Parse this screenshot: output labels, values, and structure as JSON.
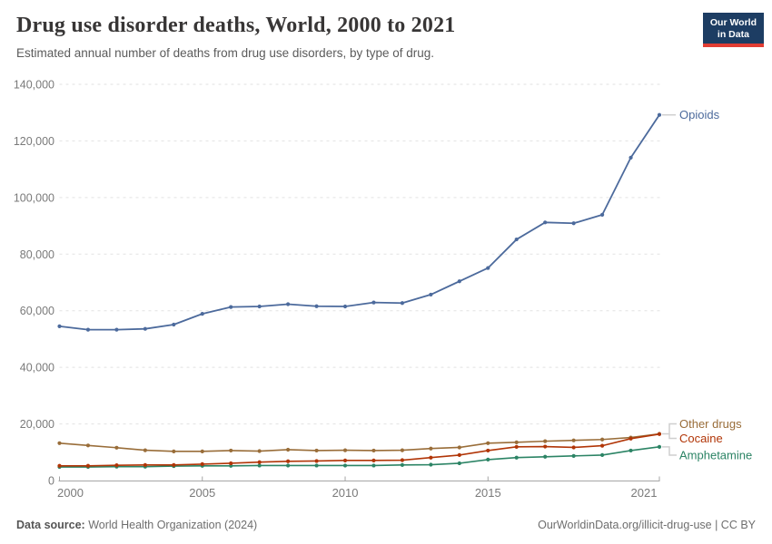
{
  "header": {
    "title": "Drug use disorder deaths, World, 2000 to 2021",
    "subtitle": "Estimated annual number of deaths from drug use disorders, by type of drug."
  },
  "logo": {
    "line1": "Our World",
    "line2": "in Data"
  },
  "footer": {
    "source_label": "Data source:",
    "source_text": "World Health Organization (2024)",
    "credit": "OurWorldinData.org/illicit-drug-use | CC BY"
  },
  "colors": {
    "opioids": "#4C6A9C",
    "other_drugs": "#996D39",
    "cocaine": "#B13507",
    "amphetamine": "#2C8465",
    "logo_bg": "#1d3d63",
    "logo_accent": "#e23d33",
    "grid": "#e2e2e2",
    "axis": "#a5a5a5",
    "tick_text": "#7a7a7a",
    "connector": "#cfcfcf"
  },
  "chart_data": {
    "type": "line",
    "title": "Drug use disorder deaths, World, 2000 to 2021",
    "xlabel": "",
    "ylabel": "",
    "grid": "dashed-horizontal",
    "legend_position": "right-end-labels",
    "ylim": [
      0,
      140000
    ],
    "yticks": [
      0,
      20000,
      40000,
      60000,
      80000,
      100000,
      120000,
      140000
    ],
    "xticks": [
      2000,
      2005,
      2010,
      2015,
      2021
    ],
    "x": [
      2000,
      2001,
      2002,
      2003,
      2004,
      2005,
      2006,
      2007,
      2008,
      2009,
      2010,
      2011,
      2012,
      2013,
      2014,
      2015,
      2016,
      2017,
      2018,
      2019,
      2020,
      2021
    ],
    "series": [
      {
        "name": "Opioids",
        "color": "#4C6A9C",
        "values": [
          54500,
          53300,
          53300,
          53600,
          55100,
          58900,
          61300,
          61500,
          62300,
          61600,
          61500,
          62900,
          62700,
          65700,
          70400,
          75100,
          85200,
          91200,
          90900,
          93900,
          114100,
          129200
        ]
      },
      {
        "name": "Other drugs",
        "color": "#996D39",
        "values": [
          13200,
          12400,
          11600,
          10700,
          10300,
          10300,
          10600,
          10400,
          10900,
          10600,
          10700,
          10600,
          10700,
          11300,
          11700,
          13200,
          13500,
          13900,
          14200,
          14500,
          15200,
          16500
        ]
      },
      {
        "name": "Cocaine",
        "color": "#B13507",
        "values": [
          5200,
          5200,
          5400,
          5500,
          5500,
          5800,
          6100,
          6500,
          6800,
          6900,
          7100,
          7100,
          7200,
          8100,
          9000,
          10600,
          11900,
          12000,
          11700,
          12300,
          14800,
          16400
        ]
      },
      {
        "name": "Amphetamine",
        "color": "#2C8465",
        "values": [
          4800,
          4800,
          4900,
          4900,
          5100,
          5200,
          5200,
          5300,
          5300,
          5300,
          5300,
          5300,
          5500,
          5600,
          6100,
          7400,
          8100,
          8400,
          8700,
          9000,
          10600,
          11900
        ]
      }
    ]
  }
}
